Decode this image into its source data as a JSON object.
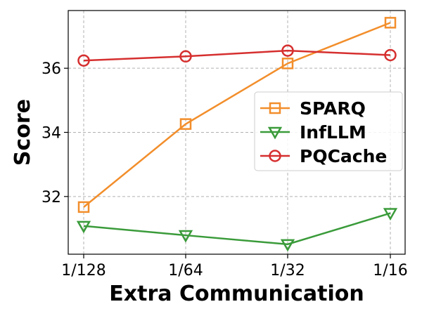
{
  "chart_data": {
    "type": "line",
    "xlabel": "Extra Communication",
    "ylabel": "Score",
    "categories": [
      "1/128",
      "1/64",
      "1/32",
      "1/16"
    ],
    "yticks": [
      32,
      34,
      36
    ],
    "ylim": [
      30.2,
      37.8
    ],
    "grid": true,
    "legend_position": "center-right",
    "series": [
      {
        "name": "SPARQ",
        "color": "#f28e2b",
        "marker": "square",
        "values": [
          31.67,
          34.26,
          36.15,
          37.42
        ]
      },
      {
        "name": "InfLLM",
        "color": "#3a9b3a",
        "marker": "triangle-down",
        "values": [
          31.08,
          30.79,
          30.51,
          31.48
        ]
      },
      {
        "name": "PQCache",
        "color": "#d62f2f",
        "marker": "circle",
        "values": [
          36.24,
          36.37,
          36.55,
          36.41
        ]
      }
    ]
  }
}
